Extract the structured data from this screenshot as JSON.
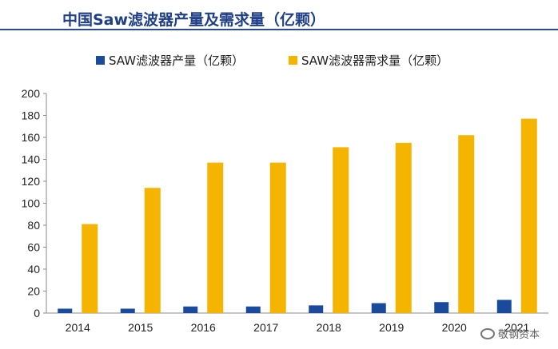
{
  "header": {
    "title": "中国Saw滤波器产量及需求量（亿颗）"
  },
  "watermark": {
    "text": "敬钢资本",
    "icon": "wechat-icon"
  },
  "chart_data": {
    "type": "bar",
    "categories": [
      "2014",
      "2015",
      "2016",
      "2017",
      "2018",
      "2019",
      "2020",
      "2021"
    ],
    "series": [
      {
        "name": "SAW滤波器产量（亿颗）",
        "color": "#1a4a9c",
        "values": [
          4,
          4,
          6,
          6,
          7,
          9,
          10,
          12
        ]
      },
      {
        "name": "SAW滤波器需求量（亿颗）",
        "color": "#f5b400",
        "values": [
          81,
          114,
          137,
          137,
          151,
          155,
          162,
          177
        ]
      }
    ],
    "ylim": [
      0,
      200
    ],
    "yticks": [
      0,
      20,
      40,
      60,
      80,
      100,
      120,
      140,
      160,
      180,
      200
    ],
    "legend": "top",
    "grid": false
  }
}
